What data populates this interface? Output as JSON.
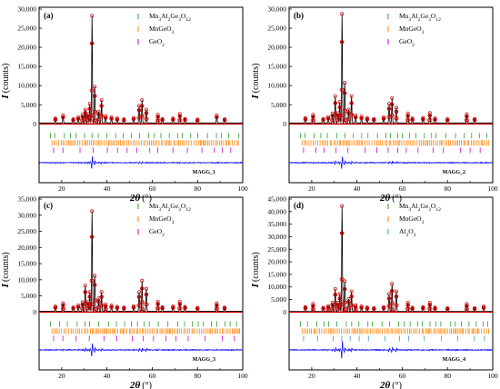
{
  "figure": {
    "background": "#ffffff"
  },
  "colors": {
    "observed": "#cc0000",
    "calculated": "#000000",
    "difference": "#0000ff",
    "baseline": "#cc0000"
  },
  "chart_data": [
    {
      "type": "line",
      "panel_label": "(a)",
      "sample_label": "MAGG_1",
      "xlabel": "2θ",
      "xlabel_unit": "(°)",
      "ylabel": "I",
      "ylabel_unit": "(counts)",
      "xlim": [
        10,
        100
      ],
      "ylim": [
        0,
        30000
      ],
      "x_ticks": [
        "20",
        "40",
        "60",
        "80",
        "100"
      ],
      "y_ticks": [
        "0",
        "5,000",
        "10,000",
        "15,000",
        "20,000",
        "25,000",
        "30,000"
      ],
      "legend": [
        {
          "label": "Mn3Al2Ge3O12",
          "main": "Mn",
          "sub1": "3",
          "mid1": "Al",
          "sub2": "2",
          "mid2": "Ge",
          "sub3": "3",
          "mid3": "O",
          "sub4": "12",
          "color": "#2ca02c"
        },
        {
          "label": "MnGeO3",
          "main": "MnGeO",
          "sub1": "3",
          "color": "#ff8000"
        },
        {
          "label": "GeO2",
          "main": "GeO",
          "sub1": "2",
          "color": "#cc00cc"
        }
      ],
      "peaks": [
        {
          "x": 17.2,
          "y": 1200
        },
        {
          "x": 20.6,
          "y": 2000
        },
        {
          "x": 25.1,
          "y": 1000
        },
        {
          "x": 27.3,
          "y": 1500
        },
        {
          "x": 29.2,
          "y": 2200
        },
        {
          "x": 30.4,
          "y": 3500
        },
        {
          "x": 31.6,
          "y": 2400
        },
        {
          "x": 32.4,
          "y": 5000
        },
        {
          "x": 33.4,
          "y": 28000
        },
        {
          "x": 34.6,
          "y": 9500
        },
        {
          "x": 36.3,
          "y": 3000
        },
        {
          "x": 37.6,
          "y": 6000
        },
        {
          "x": 39.4,
          "y": 1800
        },
        {
          "x": 42.0,
          "y": 1500
        },
        {
          "x": 44.5,
          "y": 1200
        },
        {
          "x": 47.5,
          "y": 1000
        },
        {
          "x": 51.8,
          "y": 1400
        },
        {
          "x": 54.2,
          "y": 4500
        },
        {
          "x": 55.5,
          "y": 6000
        },
        {
          "x": 57.4,
          "y": 3500
        },
        {
          "x": 62.5,
          "y": 2200
        },
        {
          "x": 64.5,
          "y": 1100
        },
        {
          "x": 69.2,
          "y": 1200
        },
        {
          "x": 72.2,
          "y": 2400
        },
        {
          "x": 74.5,
          "y": 1100
        },
        {
          "x": 80.0,
          "y": 900
        },
        {
          "x": 88.5,
          "y": 2000
        },
        {
          "x": 92.0,
          "y": 1000
        }
      ],
      "reflection_rows": 3
    },
    {
      "type": "line",
      "panel_label": "(b)",
      "sample_label": "MAGG_2",
      "xlabel": "2θ",
      "xlabel_unit": "(°)",
      "ylabel": "I",
      "ylabel_unit": "(counts)",
      "xlim": [
        10,
        100
      ],
      "ylim": [
        0,
        30000
      ],
      "x_ticks": [
        "20",
        "40",
        "60",
        "80",
        "100"
      ],
      "y_ticks": [
        "0",
        "5,000",
        "10,000",
        "15,000",
        "20,000",
        "25,000",
        "30,000"
      ],
      "legend": [
        {
          "label": "Mn3Al2Ge3O12",
          "main": "Mn",
          "sub1": "3",
          "mid1": "Al",
          "sub2": "2",
          "mid2": "Ge",
          "sub3": "3",
          "mid3": "O",
          "sub4": "12",
          "color": "#2ca02c"
        },
        {
          "label": "MnGeO3",
          "main": "MnGeO",
          "sub1": "3",
          "color": "#ff8000"
        },
        {
          "label": "GeO2",
          "main": "GeO",
          "sub1": "2",
          "color": "#cc00cc"
        }
      ],
      "peaks": [
        {
          "x": 17.2,
          "y": 1300
        },
        {
          "x": 20.6,
          "y": 2200
        },
        {
          "x": 25.1,
          "y": 1100
        },
        {
          "x": 27.3,
          "y": 1600
        },
        {
          "x": 29.2,
          "y": 2500
        },
        {
          "x": 30.4,
          "y": 7000
        },
        {
          "x": 31.6,
          "y": 2600
        },
        {
          "x": 32.4,
          "y": 5500
        },
        {
          "x": 33.4,
          "y": 28500
        },
        {
          "x": 34.6,
          "y": 10500
        },
        {
          "x": 36.3,
          "y": 3500
        },
        {
          "x": 37.6,
          "y": 7000
        },
        {
          "x": 39.4,
          "y": 2000
        },
        {
          "x": 42.0,
          "y": 1700
        },
        {
          "x": 44.5,
          "y": 1300
        },
        {
          "x": 47.5,
          "y": 1100
        },
        {
          "x": 51.8,
          "y": 1500
        },
        {
          "x": 54.2,
          "y": 5000
        },
        {
          "x": 55.5,
          "y": 6500
        },
        {
          "x": 57.4,
          "y": 4000
        },
        {
          "x": 62.5,
          "y": 2500
        },
        {
          "x": 64.5,
          "y": 1200
        },
        {
          "x": 69.2,
          "y": 1300
        },
        {
          "x": 72.2,
          "y": 2600
        },
        {
          "x": 74.5,
          "y": 1200
        },
        {
          "x": 80.0,
          "y": 1000
        },
        {
          "x": 88.5,
          "y": 2300
        },
        {
          "x": 92.0,
          "y": 1100
        }
      ],
      "reflection_rows": 3
    },
    {
      "type": "line",
      "panel_label": "(c)",
      "sample_label": "MAGG_3",
      "xlabel": "2θ",
      "xlabel_unit": "(°)",
      "ylabel": "I",
      "ylabel_unit": "(counts)",
      "xlim": [
        10,
        100
      ],
      "ylim": [
        0,
        35000
      ],
      "x_ticks": [
        "20",
        "40",
        "60",
        "80",
        "100"
      ],
      "y_ticks": [
        "0",
        "5,000",
        "10,000",
        "15,000",
        "20,000",
        "25,000",
        "30,000",
        "35,000"
      ],
      "legend": [
        {
          "label": "Mn3Al2Ge3O12",
          "main": "Mn",
          "sub1": "3",
          "mid1": "Al",
          "sub2": "2",
          "mid2": "Ge",
          "sub3": "3",
          "mid3": "O",
          "sub4": "12",
          "color": "#2ca02c"
        },
        {
          "label": "MnGeO3",
          "main": "MnGeO",
          "sub1": "3",
          "color": "#ff8000"
        },
        {
          "label": "GeO2",
          "main": "GeO",
          "sub1": "2",
          "color": "#cc00cc"
        }
      ],
      "peaks": [
        {
          "x": 17.2,
          "y": 1500
        },
        {
          "x": 20.6,
          "y": 2500
        },
        {
          "x": 25.1,
          "y": 1200
        },
        {
          "x": 27.3,
          "y": 1800
        },
        {
          "x": 29.2,
          "y": 2800
        },
        {
          "x": 30.4,
          "y": 8000
        },
        {
          "x": 31.6,
          "y": 3000
        },
        {
          "x": 32.4,
          "y": 6000
        },
        {
          "x": 33.4,
          "y": 31000
        },
        {
          "x": 34.6,
          "y": 11000
        },
        {
          "x": 36.3,
          "y": 4000
        },
        {
          "x": 37.6,
          "y": 6000
        },
        {
          "x": 39.4,
          "y": 2200
        },
        {
          "x": 42.0,
          "y": 1800
        },
        {
          "x": 44.5,
          "y": 1400
        },
        {
          "x": 47.5,
          "y": 1200
        },
        {
          "x": 51.8,
          "y": 1600
        },
        {
          "x": 54.2,
          "y": 6000
        },
        {
          "x": 55.5,
          "y": 9500
        },
        {
          "x": 57.4,
          "y": 7000
        },
        {
          "x": 62.5,
          "y": 3000
        },
        {
          "x": 64.5,
          "y": 1300
        },
        {
          "x": 69.2,
          "y": 1500
        },
        {
          "x": 72.2,
          "y": 3000
        },
        {
          "x": 74.5,
          "y": 1400
        },
        {
          "x": 80.0,
          "y": 1100
        },
        {
          "x": 88.5,
          "y": 2500
        },
        {
          "x": 92.0,
          "y": 1200
        }
      ],
      "reflection_rows": 3
    },
    {
      "type": "line",
      "panel_label": "(d)",
      "sample_label": "MAGG_4",
      "xlabel": "2θ",
      "xlabel_unit": "(°)",
      "ylabel": "I",
      "ylabel_unit": "(counts)",
      "xlim": [
        10,
        100
      ],
      "ylim": [
        0,
        45000
      ],
      "x_ticks": [
        "20",
        "40",
        "60",
        "80",
        "100"
      ],
      "y_ticks": [
        "0",
        "5,000",
        "10,000",
        "15,000",
        "20,000",
        "25,000",
        "30,000",
        "35,000",
        "40,000",
        "45,000"
      ],
      "legend": [
        {
          "label": "Mn3Al2Ge3O12",
          "main": "Mn",
          "sub1": "3",
          "mid1": "Al",
          "sub2": "2",
          "mid2": "Ge",
          "sub3": "3",
          "mid3": "O",
          "sub4": "12",
          "color": "#2ca02c"
        },
        {
          "label": "MnGeO3",
          "main": "MnGeO",
          "sub1": "3",
          "color": "#ff8000"
        },
        {
          "label": "Al2O3",
          "main": "Al",
          "sub1": "2",
          "mid1": "O",
          "sub2": "3",
          "color": "#3399cc"
        }
      ],
      "peaks": [
        {
          "x": 17.2,
          "y": 1800
        },
        {
          "x": 20.6,
          "y": 3000
        },
        {
          "x": 25.1,
          "y": 1500
        },
        {
          "x": 27.3,
          "y": 2200
        },
        {
          "x": 29.2,
          "y": 3500
        },
        {
          "x": 30.4,
          "y": 9000
        },
        {
          "x": 31.6,
          "y": 3500
        },
        {
          "x": 32.4,
          "y": 7000
        },
        {
          "x": 33.4,
          "y": 42000
        },
        {
          "x": 34.6,
          "y": 12000
        },
        {
          "x": 36.3,
          "y": 5000
        },
        {
          "x": 37.6,
          "y": 8000
        },
        {
          "x": 39.4,
          "y": 2500
        },
        {
          "x": 42.0,
          "y": 2000
        },
        {
          "x": 44.5,
          "y": 1600
        },
        {
          "x": 47.5,
          "y": 1400
        },
        {
          "x": 51.8,
          "y": 1800
        },
        {
          "x": 54.2,
          "y": 7000
        },
        {
          "x": 55.5,
          "y": 11000
        },
        {
          "x": 57.4,
          "y": 8000
        },
        {
          "x": 62.5,
          "y": 3500
        },
        {
          "x": 64.5,
          "y": 1500
        },
        {
          "x": 69.2,
          "y": 1800
        },
        {
          "x": 72.2,
          "y": 3500
        },
        {
          "x": 74.5,
          "y": 1600
        },
        {
          "x": 80.0,
          "y": 1300
        },
        {
          "x": 88.5,
          "y": 3000
        },
        {
          "x": 92.0,
          "y": 1400
        },
        {
          "x": 96.0,
          "y": 2000
        }
      ],
      "reflection_rows": 3
    }
  ]
}
